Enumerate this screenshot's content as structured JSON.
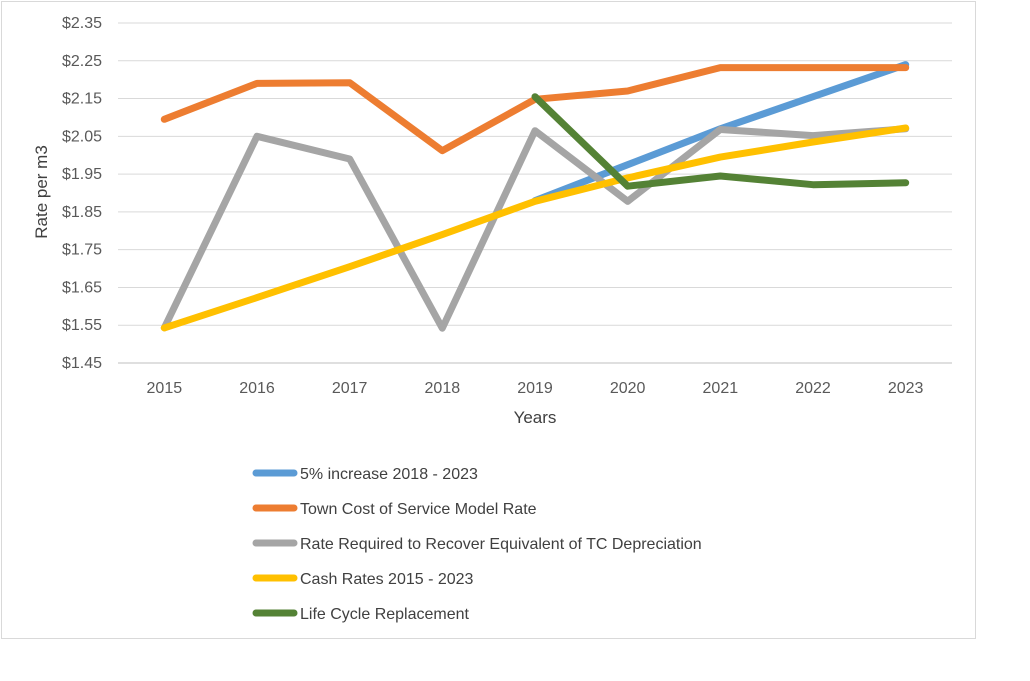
{
  "chart_data": {
    "type": "line",
    "title": "",
    "xlabel": "Years",
    "ylabel": "Rate per m3",
    "categories": [
      "2015",
      "2016",
      "2017",
      "2018",
      "2019",
      "2020",
      "2021",
      "2022",
      "2023"
    ],
    "y_ticks": [
      "$2.35",
      "$2.25",
      "$2.15",
      "$2.05",
      "$1.95",
      "$1.85",
      "$1.75",
      "$1.65",
      "$1.55",
      "$1.45"
    ],
    "ylim": [
      1.45,
      2.35
    ],
    "grid": true,
    "legend_position": "bottom",
    "series": [
      {
        "name": "5% increase 2018 - 2023",
        "color": "#5b9bd5",
        "values": [
          null,
          null,
          null,
          null,
          1.88,
          1.975,
          2.07,
          2.155,
          2.24
        ]
      },
      {
        "name": "Town Cost of Service Model Rate",
        "color": "#ed7d31",
        "values": [
          2.095,
          2.19,
          2.192,
          2.012,
          2.148,
          2.17,
          2.232,
          2.232,
          2.232
        ]
      },
      {
        "name": "Rate Required to Recover Equivalent of TC Depreciation",
        "color": "#a5a5a5",
        "values": [
          1.543,
          2.05,
          1.99,
          1.542,
          2.065,
          1.878,
          2.068,
          2.052,
          2.07
        ]
      },
      {
        "name": "Cash Rates 2015 - 2023",
        "color": "#ffc000",
        "values": [
          1.543,
          1.623,
          1.705,
          1.79,
          1.878,
          1.94,
          1.995,
          2.035,
          2.072
        ]
      },
      {
        "name": "Life Cycle Replacement",
        "color": "#548235",
        "values": [
          null,
          null,
          null,
          null,
          2.155,
          1.918,
          1.945,
          1.922,
          1.927
        ]
      }
    ]
  }
}
